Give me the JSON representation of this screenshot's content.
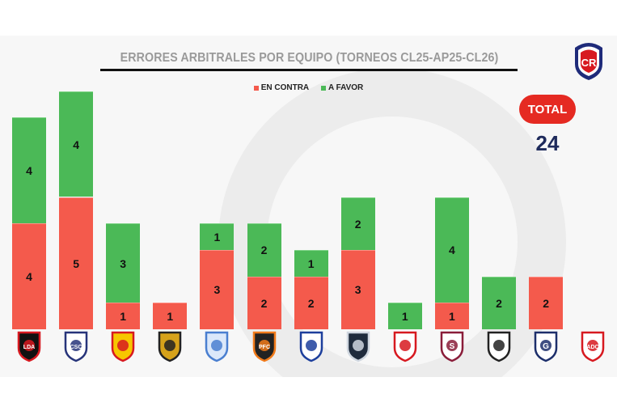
{
  "chart_data": {
    "type": "bar",
    "stacked": true,
    "title": "ERRORES ARBITRALES POR EQUIPO (TORNEOS CL25-AP25-CL26)",
    "categories": [
      "Alajuelense",
      "Cartaginés",
      "Herediano",
      "Liberia",
      "Pérez Zeledón",
      "Puntarenas",
      "San Carlos",
      "Sporting",
      "Municipal Liberia/Guanacasteca",
      "Saprissa",
      "Santa Ana",
      "Guadalupe",
      "ADC"
    ],
    "series": [
      {
        "name": "EN CONTRA",
        "color": "#f45a4c",
        "values": [
          4,
          5,
          1,
          1,
          3,
          2,
          2,
          3,
          0,
          1,
          0,
          2,
          0
        ]
      },
      {
        "name": "A FAVOR",
        "color": "#4bb957",
        "values": [
          4,
          4,
          3,
          0,
          1,
          2,
          1,
          2,
          1,
          4,
          2,
          0,
          0
        ]
      }
    ],
    "legend": "top-center",
    "grid": false,
    "ylim": [
      0,
      9
    ]
  },
  "total": {
    "label": "TOTAL",
    "value": "24"
  },
  "crest_text": "CR",
  "logos": [
    {
      "colors": [
        "#111",
        "#d71920"
      ],
      "text": "LDA"
    },
    {
      "colors": [
        "#fff",
        "#27347a"
      ],
      "text": "CSC"
    },
    {
      "colors": [
        "#f7c600",
        "#d71920"
      ],
      "text": ""
    },
    {
      "colors": [
        "#d6a21a",
        "#222"
      ],
      "text": ""
    },
    {
      "colors": [
        "#dbe8fa",
        "#4a7fd0"
      ],
      "text": ""
    },
    {
      "colors": [
        "#222",
        "#f07a1a"
      ],
      "text": "PFC"
    },
    {
      "colors": [
        "#fff",
        "#1d3f9c"
      ],
      "text": ""
    },
    {
      "colors": [
        "#1f2b3c",
        "#cfd6df"
      ],
      "text": ""
    },
    {
      "colors": [
        "#fff",
        "#d71920"
      ],
      "text": ""
    },
    {
      "colors": [
        "#fff",
        "#8a1d3a"
      ],
      "text": "S"
    },
    {
      "colors": [
        "#fff",
        "#222"
      ],
      "text": ""
    },
    {
      "colors": [
        "#fff",
        "#1d2f6b"
      ],
      "text": "G"
    },
    {
      "colors": [
        "#fff",
        "#d71920"
      ],
      "text": "ADC"
    }
  ]
}
